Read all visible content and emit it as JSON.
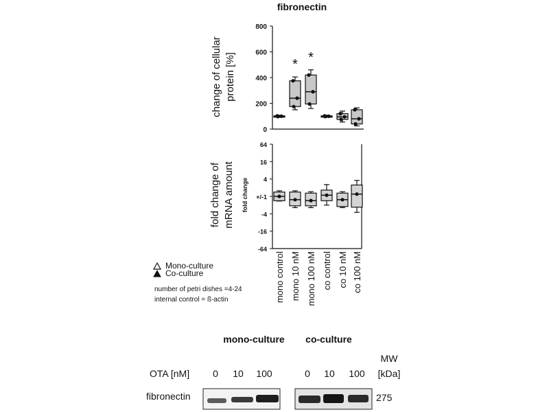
{
  "figure_title": "fibronectin",
  "legend": {
    "mono_label": "Mono-culture",
    "co_label": "Co-culture",
    "note_line1": "number  of petri dishes =4-24",
    "note_line2": "internal  control = ß-actin"
  },
  "blot": {
    "group_mono": "mono-culture",
    "group_co": "co-culture",
    "ota_label": "OTA [nM]",
    "mono_doses": [
      "0",
      "10",
      "100"
    ],
    "co_doses": [
      "0",
      "10",
      "100"
    ],
    "mw_label_line1": "MW",
    "mw_label_line2": "[kDa]",
    "protein_label": "fibronectin",
    "mw_value": "275"
  },
  "chart_data": [
    {
      "type": "box",
      "title": "fibronectin",
      "ylabel_line1": "change of cellular",
      "ylabel_line2": "protein [%]",
      "ylim": [
        0,
        800
      ],
      "yticks": [
        "0",
        "200",
        "400",
        "600",
        "800"
      ],
      "categories": [
        "mono control",
        "mono 10 nM",
        "mono 100 nM",
        "co control",
        "co 10 nM",
        "co 100 nM"
      ],
      "boxes": [
        {
          "min": 92,
          "q1": 97,
          "median": 100,
          "q3": 103,
          "max": 108,
          "significant": false
        },
        {
          "min": 150,
          "q1": 175,
          "median": 240,
          "q3": 375,
          "max": 405,
          "significant": true
        },
        {
          "min": 160,
          "q1": 195,
          "median": 290,
          "q3": 420,
          "max": 460,
          "significant": true
        },
        {
          "min": 92,
          "q1": 97,
          "median": 100,
          "q3": 103,
          "max": 108,
          "significant": false
        },
        {
          "min": 55,
          "q1": 75,
          "median": 95,
          "q3": 120,
          "max": 140,
          "significant": false
        },
        {
          "min": 25,
          "q1": 40,
          "median": 80,
          "q3": 150,
          "max": 165,
          "significant": false
        }
      ],
      "significance_marker": "*",
      "grid": false
    },
    {
      "type": "box",
      "ylabel_line1": "fold change of",
      "ylabel_line2": "mRNA amount",
      "inner_ylabel": "fold change",
      "scale": "log2",
      "ylim": [
        -64,
        64
      ],
      "yticks": [
        "64",
        "16",
        "4",
        "+/-1",
        "-4",
        "-16",
        "-64"
      ],
      "categories": [
        "mono control",
        "mono 10 nM",
        "mono 100 nM",
        "co control",
        "co 10 nM",
        "co 100 nM"
      ],
      "boxes": [
        {
          "min": -1.3,
          "q1": -1.2,
          "median": 1,
          "q3": 1.2,
          "max": 1.4
        },
        {
          "min": -2.2,
          "q1": -1.8,
          "median": -1.3,
          "q3": 1.2,
          "max": 1.4
        },
        {
          "min": -2.2,
          "q1": -1.8,
          "median": -1.4,
          "q3": 1.1,
          "max": 1.3
        },
        {
          "min": -1.8,
          "q1": -1.2,
          "median": 1.1,
          "q3": 1.4,
          "max": 2.3
        },
        {
          "min": -2.2,
          "q1": -1.9,
          "median": -1.3,
          "q3": 1.1,
          "max": 1.3
        },
        {
          "min": -3.2,
          "q1": -2.0,
          "median": 1.2,
          "q3": 2.1,
          "max": 3.2
        }
      ],
      "grid": false
    }
  ]
}
